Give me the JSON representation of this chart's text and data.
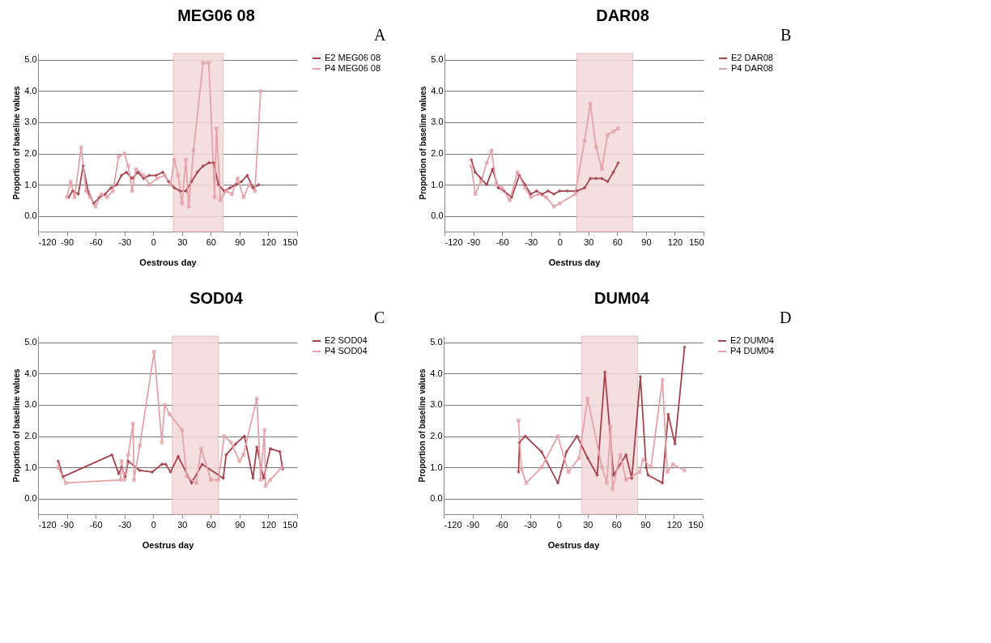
{
  "chart_data": [
    {
      "type": "line",
      "title": "MEG06 08",
      "xlabel": "Oestrous day",
      "ylabel": "Proportion of baseline values",
      "annotations": [
        "A"
      ],
      "xlim": [
        -120,
        150
      ],
      "xticks": [
        -120,
        -90,
        -60,
        -30,
        0,
        30,
        60,
        90,
        120,
        150
      ],
      "ylim": [
        -0.5,
        5.2
      ],
      "yticks": [
        {
          "value": 0,
          "label": "0.0"
        },
        {
          "value": 1,
          "label": "1.0"
        },
        {
          "value": 2,
          "label": "2.0"
        },
        {
          "value": 3,
          "label": "3.0"
        },
        {
          "value": 4,
          "label": "4.0"
        },
        {
          "value": 5,
          "label": "5.0"
        }
      ],
      "grid": "y",
      "legend": "right",
      "line_style": "solid",
      "bands": [
        {
          "axis": "x",
          "from": 21,
          "to": 73,
          "color": "#f4d9da"
        }
      ],
      "series": [
        {
          "name": "E2 MEG06 08",
          "color": "#a3434d",
          "marker": "diamond",
          "x": [
            -88,
            -84,
            -78,
            -73,
            -68,
            -62,
            -56,
            -50,
            -44,
            -38,
            -33,
            -28,
            -22,
            -16,
            -10,
            -4,
            3,
            10,
            16,
            22,
            28,
            34,
            40,
            46,
            52,
            58,
            63,
            68,
            74,
            80,
            86,
            92,
            98,
            104,
            110
          ],
          "values": [
            0.6,
            0.8,
            0.7,
            1.6,
            0.8,
            0.4,
            0.6,
            0.7,
            0.9,
            1.0,
            1.3,
            1.4,
            1.2,
            1.4,
            1.2,
            1.3,
            1.3,
            1.4,
            1.1,
            0.9,
            0.8,
            0.8,
            1.1,
            1.4,
            1.6,
            1.7,
            1.7,
            1.0,
            0.8,
            0.9,
            1.0,
            1.1,
            1.3,
            0.9,
            1.0
          ]
        },
        {
          "name": "P4 MEG06 08",
          "color": "#e3a3aa",
          "marker": "square",
          "x": [
            -90,
            -86,
            -82,
            -75,
            -70,
            -66,
            -60,
            -54,
            -48,
            -42,
            -36,
            -30,
            -26,
            -22,
            -18,
            -10,
            -4,
            4,
            12,
            18,
            22,
            26,
            30,
            34,
            37,
            42,
            52,
            58,
            64,
            66,
            70,
            76,
            82,
            88,
            94,
            100,
            106,
            112
          ],
          "values": [
            0.6,
            1.1,
            0.6,
            2.2,
            0.8,
            0.6,
            0.3,
            0.7,
            0.6,
            0.8,
            1.9,
            2.0,
            1.6,
            0.8,
            1.5,
            1.3,
            1.0,
            1.2,
            1.3,
            1.0,
            1.8,
            1.3,
            0.4,
            1.8,
            0.3,
            2.1,
            4.9,
            4.9,
            0.6,
            2.8,
            0.5,
            0.8,
            0.7,
            1.2,
            0.6,
            1.0,
            0.8,
            4.0
          ]
        }
      ]
    },
    {
      "type": "line",
      "title": "DAR08",
      "xlabel": "Oestrus day",
      "ylabel": "Proportion of baseline values",
      "annotations": [
        "B"
      ],
      "xlim": [
        -120,
        150
      ],
      "xticks": [
        -120,
        -90,
        -60,
        -30,
        0,
        30,
        60,
        90,
        120,
        150
      ],
      "ylim": [
        -0.5,
        5.2
      ],
      "yticks": [
        {
          "value": 0,
          "label": "0.0"
        },
        {
          "value": 1,
          "label": "1.0"
        },
        {
          "value": 2,
          "label": "2.0"
        },
        {
          "value": 3,
          "label": "3.0"
        },
        {
          "value": 4,
          "label": "4.0"
        },
        {
          "value": 5,
          "label": "5.0"
        }
      ],
      "grid": "y",
      "legend": "right",
      "line_style": "solid",
      "bands": [
        {
          "axis": "x",
          "from": 18,
          "to": 76,
          "color": "#f4d9da"
        }
      ],
      "series": [
        {
          "name": "E2 DAR08",
          "color": "#a3434d",
          "marker": "diamond",
          "x": [
            -92,
            -88,
            -82,
            -76,
            -70,
            -64,
            -58,
            -50,
            -42,
            -36,
            -30,
            -24,
            -18,
            -12,
            -6,
            0,
            8,
            18,
            26,
            32,
            38,
            44,
            50,
            56,
            61
          ],
          "values": [
            1.8,
            1.4,
            1.2,
            1.0,
            1.5,
            0.9,
            0.8,
            0.6,
            1.3,
            1.0,
            0.7,
            0.8,
            0.7,
            0.8,
            0.7,
            0.8,
            0.8,
            0.8,
            0.9,
            1.2,
            1.2,
            1.2,
            1.1,
            1.4,
            1.7
          ]
        },
        {
          "name": "P4 DAR08",
          "color": "#e3a3aa",
          "marker": "square",
          "x": [
            -92,
            -88,
            -82,
            -76,
            -71,
            -66,
            -60,
            -52,
            -44,
            -36,
            -30,
            -22,
            -14,
            -6,
            0,
            16,
            26,
            32,
            38,
            44,
            50,
            56,
            61
          ],
          "values": [
            1.6,
            0.7,
            1.1,
            1.7,
            2.1,
            1.0,
            0.9,
            0.5,
            1.4,
            0.9,
            0.6,
            0.7,
            0.6,
            0.3,
            0.4,
            0.7,
            2.4,
            3.6,
            2.2,
            1.5,
            2.6,
            2.7,
            2.8
          ]
        }
      ]
    },
    {
      "type": "line",
      "title": "SOD04",
      "xlabel": "Oestrus day",
      "ylabel": "Proportion of baseline values",
      "annotations": [
        "C"
      ],
      "xlim": [
        -120,
        150
      ],
      "xticks": [
        -120,
        -90,
        -60,
        -30,
        0,
        30,
        60,
        90,
        120,
        150
      ],
      "ylim": [
        -0.5,
        5.2
      ],
      "yticks": [
        {
          "value": 0,
          "label": "0.0"
        },
        {
          "value": 1,
          "label": "1.0"
        },
        {
          "value": 2,
          "label": "2.0"
        },
        {
          "value": 3,
          "label": "3.0"
        },
        {
          "value": 4,
          "label": "4.0"
        },
        {
          "value": 5,
          "label": "5.0"
        }
      ],
      "grid": "y",
      "legend": "right",
      "line_style": "solid",
      "bands": [
        {
          "axis": "x",
          "from": 20,
          "to": 68,
          "color": "#f4d9da"
        }
      ],
      "series": [
        {
          "name": "E2 SOD04",
          "color": "#a3434d",
          "marker": "diamond",
          "x": [
            -99,
            -94,
            -43,
            -36,
            -33,
            -29,
            -26,
            -14,
            -1,
            9,
            13,
            18,
            26,
            40,
            51,
            73,
            76,
            86,
            95,
            104,
            108,
            115,
            122,
            132,
            135
          ],
          "values": [
            1.2,
            0.7,
            1.4,
            0.8,
            1.0,
            0.7,
            1.2,
            0.9,
            0.85,
            1.1,
            1.1,
            0.85,
            1.35,
            0.5,
            1.1,
            0.65,
            1.4,
            1.75,
            2.0,
            0.65,
            1.65,
            0.65,
            1.6,
            1.5,
            0.95
          ]
        },
        {
          "name": "P4 SOD04",
          "color": "#e3a3aa",
          "marker": "square",
          "x": [
            -99,
            -91,
            -34,
            -33,
            -30,
            -26,
            -21,
            -20,
            -14,
            1,
            9,
            12,
            17,
            30,
            35,
            45,
            50,
            60,
            68,
            74,
            81,
            90,
            94,
            108,
            112,
            116,
            117,
            122,
            134
          ],
          "values": [
            1.0,
            0.5,
            0.6,
            1.2,
            0.6,
            1.4,
            2.4,
            0.6,
            1.7,
            4.7,
            1.8,
            3.0,
            2.7,
            2.2,
            0.7,
            0.5,
            1.6,
            0.6,
            0.6,
            2.0,
            1.8,
            1.2,
            1.4,
            3.2,
            0.6,
            2.2,
            0.4,
            0.6,
            1.0
          ]
        }
      ]
    },
    {
      "type": "line",
      "title": "DUM04",
      "xlabel": "Oestrus day",
      "ylabel": "Proportion of baseline values",
      "annotations": [
        "D"
      ],
      "xlim": [
        -120,
        150
      ],
      "xticks": [
        -120,
        -90,
        -60,
        -30,
        0,
        30,
        60,
        90,
        120,
        150
      ],
      "ylim": [
        -0.5,
        5.2
      ],
      "yticks": [
        {
          "value": 0,
          "label": "0.0"
        },
        {
          "value": 1,
          "label": "1.0"
        },
        {
          "value": 2,
          "label": "2.0"
        },
        {
          "value": 3,
          "label": "3.0"
        },
        {
          "value": 4,
          "label": "4.0"
        },
        {
          "value": 5,
          "label": "5.0"
        }
      ],
      "grid": "y",
      "legend": "right",
      "line_style": "solid",
      "bands": [
        {
          "axis": "x",
          "from": 24,
          "to": 82,
          "color": "#f4d9da"
        }
      ],
      "series": [
        {
          "name": "E2 DUM04",
          "color": "#a3434d",
          "marker": "diamond",
          "x": [
            -42,
            -41,
            -35,
            -18,
            -1,
            8,
            19,
            30,
            40,
            48,
            57,
            70,
            76,
            85,
            91,
            93,
            108,
            114,
            121,
            131
          ],
          "values": [
            0.85,
            1.8,
            2.0,
            1.5,
            0.5,
            1.5,
            2.0,
            1.3,
            0.75,
            4.05,
            0.75,
            1.4,
            0.65,
            3.9,
            1.0,
            0.75,
            0.5,
            2.7,
            1.75,
            4.85
          ]
        },
        {
          "name": "P4 DUM04",
          "color": "#e3a3aa",
          "marker": "square",
          "x": [
            -42,
            -39,
            -34,
            -18,
            -1,
            10,
            21,
            30,
            45,
            50,
            54,
            56,
            64,
            70,
            84,
            88,
            96,
            108,
            113,
            119,
            131
          ],
          "values": [
            2.5,
            0.95,
            0.5,
            1.0,
            2.0,
            0.85,
            1.3,
            3.2,
            1.0,
            0.5,
            2.3,
            0.3,
            1.4,
            0.6,
            0.85,
            1.25,
            1.0,
            3.8,
            0.85,
            1.1,
            0.9
          ]
        }
      ]
    }
  ]
}
